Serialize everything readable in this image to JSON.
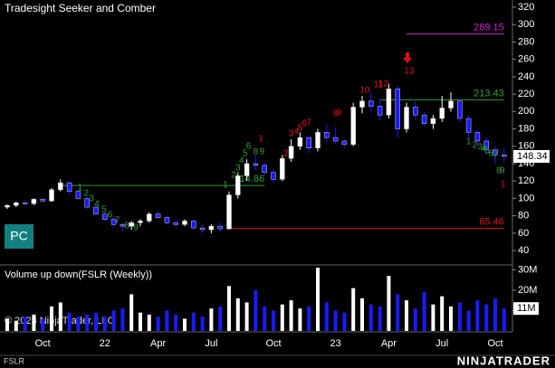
{
  "header": {
    "title": "Tradesight Seeker and Comber",
    "button": "PC",
    "copyright": "© 2023 NinjaTrader, LLC",
    "symbol": "FSLR",
    "logo": "NINJATRADER"
  },
  "chart_data": [
    {
      "type": "candlestick",
      "categories": [
        null,
        null,
        null,
        null,
        "Oct",
        null,
        null,
        null,
        null,
        null,
        null,
        "22",
        null,
        null,
        null,
        null,
        null,
        "Apr",
        null,
        null,
        null,
        null,
        null,
        "Jul",
        null,
        null,
        null,
        null,
        null,
        null,
        "Oct",
        null,
        null,
        null,
        null,
        null,
        null,
        "23",
        null,
        null,
        null,
        null,
        null,
        "Apr",
        null,
        null,
        null,
        null,
        null,
        "Jul",
        null,
        null,
        null,
        null,
        null,
        "Oct",
        null
      ],
      "open": [
        90,
        92,
        95,
        94,
        99,
        97,
        110,
        118,
        108,
        100,
        90,
        82,
        76,
        70,
        68,
        72,
        74,
        82,
        78,
        72,
        70,
        74,
        66,
        64,
        68,
        65,
        104,
        126,
        140,
        138,
        130,
        122,
        146,
        160,
        170,
        158,
        176,
        170,
        166,
        162,
        205,
        212,
        206,
        196,
        226,
        180,
        205,
        196,
        186,
        192,
        204,
        212,
        192,
        176,
        166,
        156,
        150
      ],
      "high": [
        93,
        96,
        98,
        100,
        101,
        112,
        122,
        120,
        110,
        102,
        92,
        84,
        80,
        72,
        74,
        76,
        84,
        86,
        80,
        76,
        76,
        76,
        70,
        70,
        72,
        108,
        130,
        145,
        150,
        142,
        134,
        150,
        168,
        176,
        172,
        180,
        186,
        182,
        168,
        210,
        218,
        222,
        214,
        232,
        230,
        210,
        212,
        200,
        196,
        218,
        222,
        214,
        196,
        180,
        170,
        160,
        158
      ],
      "low": [
        88,
        90,
        92,
        92,
        96,
        96,
        108,
        105,
        98,
        88,
        80,
        74,
        66,
        62,
        64,
        68,
        72,
        76,
        70,
        66,
        68,
        64,
        60,
        60,
        62,
        64,
        100,
        120,
        132,
        126,
        118,
        120,
        142,
        156,
        152,
        154,
        165,
        162,
        158,
        160,
        198,
        200,
        190,
        192,
        170,
        176,
        190,
        182,
        180,
        188,
        200,
        188,
        170,
        160,
        150,
        140,
        142
      ],
      "close": [
        92,
        95,
        94,
        99,
        97,
        110,
        118,
        108,
        100,
        90,
        82,
        76,
        70,
        68,
        72,
        74,
        82,
        78,
        72,
        70,
        74,
        66,
        64,
        68,
        65,
        104,
        126,
        140,
        138,
        130,
        122,
        146,
        160,
        170,
        158,
        176,
        170,
        166,
        162,
        205,
        212,
        206,
        196,
        226,
        180,
        205,
        196,
        186,
        192,
        204,
        212,
        192,
        176,
        166,
        156,
        150,
        148.34
      ],
      "up_color": "#ffffff",
      "down_color": "#1a1aff",
      "ylim": [
        24.5,
        328.3
      ],
      "yticks": [
        40,
        60,
        80,
        100,
        120,
        140,
        160,
        180,
        200,
        220,
        240,
        260,
        280,
        300,
        320
      ],
      "last": 148.34,
      "levels": [
        {
          "value": 114.86,
          "color": "#2e9e2e",
          "start": 6,
          "end": 29
        },
        {
          "value": 213.43,
          "color": "#2e9e2e",
          "start": 42,
          "end": 56
        },
        {
          "value": 289.15,
          "color": "#d020d0",
          "start": 45,
          "end": 56
        },
        {
          "value": 65.46,
          "color": "#e01010",
          "start": 25,
          "end": 56
        }
      ],
      "annotations": [
        {
          "text": "1",
          "color": "#2e9e2e",
          "x": 8.2,
          "y": 111.9
        },
        {
          "text": "2",
          "color": "#2e9e2e",
          "x": 8.9,
          "y": 105.6
        },
        {
          "text": "3",
          "color": "#2e9e2e",
          "x": 9.5,
          "y": 99.4
        },
        {
          "text": "4",
          "color": "#2e9e2e",
          "x": 10.1,
          "y": 93.2
        },
        {
          "text": "5",
          "color": "#2e9e2e",
          "x": 10.9,
          "y": 86.9
        },
        {
          "text": "6",
          "color": "#2e9e2e",
          "x": 11.6,
          "y": 80.7
        },
        {
          "text": "7",
          "color": "#2e9e2e",
          "x": 12.4,
          "y": 74.4
        },
        {
          "text": "8",
          "color": "#2e9e2e",
          "x": 13.5,
          "y": 68.2
        },
        {
          "text": "9",
          "color": "#2e9e2e",
          "x": 14.5,
          "y": 66.1
        },
        {
          "text": "1",
          "color": "#2e9e2e",
          "x": 24.6,
          "y": 115
        },
        {
          "text": "2",
          "color": "#2e9e2e",
          "x": 25.5,
          "y": 126.5
        },
        {
          "text": "3",
          "color": "#2e9e2e",
          "x": 26,
          "y": 134.8
        },
        {
          "text": "4",
          "color": "#2e9e2e",
          "x": 26.4,
          "y": 143
        },
        {
          "text": "5",
          "color": "#2e9e2e",
          "x": 26.8,
          "y": 151.4
        },
        {
          "text": "6",
          "color": "#2e9e2e",
          "x": 27.2,
          "y": 159.8
        },
        {
          "text": "8",
          "color": "#2e9e2e",
          "x": 28,
          "y": 153.5
        },
        {
          "text": "9",
          "color": "#2e9e2e",
          "x": 28.7,
          "y": 153.5
        },
        {
          "text": "1",
          "color": "#e01010",
          "x": 28.6,
          "y": 168
        },
        {
          "text": "2",
          "color": "#e01010",
          "x": 31.4,
          "y": 151.4
        },
        {
          "text": "3",
          "color": "#e01010",
          "x": 32,
          "y": 174.3
        },
        {
          "text": "4",
          "color": "#e01010",
          "x": 32.6,
          "y": 176.4
        },
        {
          "text": "5",
          "color": "#e01010",
          "x": 33,
          "y": 180.6
        },
        {
          "text": "6",
          "color": "#e01010",
          "x": 33.5,
          "y": 185.8
        },
        {
          "text": "7",
          "color": "#e01010",
          "x": 34,
          "y": 186.8
        },
        {
          "text": "8",
          "color": "#e01010",
          "x": 37,
          "y": 197.2
        },
        {
          "text": "9",
          "color": "#e01010",
          "x": 37.4,
          "y": 198.2
        },
        {
          "text": "10",
          "color": "#e01010",
          "x": 40.3,
          "y": 224.3
        },
        {
          "text": "11",
          "color": "#e01010",
          "x": 41.8,
          "y": 230.5
        },
        {
          "text": "12",
          "color": "#e01010",
          "x": 42.4,
          "y": 231.6
        },
        {
          "text": "13",
          "color": "#e01010",
          "x": 45.3,
          "y": 246.1
        },
        {
          "text": "1",
          "color": "#2e9e2e",
          "x": 52,
          "y": 165
        },
        {
          "text": "2",
          "color": "#2e9e2e",
          "x": 52.7,
          "y": 160.8
        },
        {
          "text": "3",
          "color": "#2e9e2e",
          "x": 53.3,
          "y": 158.7
        },
        {
          "text": "4",
          "color": "#2e9e2e",
          "x": 53.7,
          "y": 156.6
        },
        {
          "text": "5",
          "color": "#2e9e2e",
          "x": 54.1,
          "y": 154.5
        },
        {
          "text": "6",
          "color": "#2e9e2e",
          "x": 54.5,
          "y": 151.4
        },
        {
          "text": "7",
          "color": "#2e9e2e",
          "x": 55,
          "y": 149.3
        },
        {
          "text": "8",
          "color": "#2e9e2e",
          "x": 55.4,
          "y": 131.7
        },
        {
          "text": "9",
          "color": "#2e9e2e",
          "x": 55.8,
          "y": 131.7
        },
        {
          "text": "1",
          "color": "#e01010",
          "x": 55.9,
          "y": 116
        }
      ]
    },
    {
      "type": "bar",
      "title": "Volume up down(FSLR (Weekly))",
      "values": [
        6,
        5,
        7,
        8,
        6,
        12,
        14,
        9,
        7,
        8,
        9,
        7,
        10,
        11,
        18,
        9,
        8,
        7,
        10,
        8,
        6,
        9,
        7,
        11,
        12,
        22,
        16,
        14,
        20,
        12,
        10,
        13,
        15,
        11,
        12,
        31,
        14,
        10,
        9,
        21,
        16,
        13,
        12,
        27,
        18,
        15,
        11,
        19,
        13,
        17,
        12,
        14,
        10,
        15,
        13,
        16,
        11
      ],
      "ylim": [
        0,
        31.5
      ],
      "yticks": [
        {
          "value": 10,
          "label": "10M"
        },
        {
          "value": 20,
          "label": "20M"
        },
        {
          "value": 30,
          "label": "30M"
        }
      ],
      "last": {
        "value": 11,
        "label": "11M"
      }
    }
  ]
}
